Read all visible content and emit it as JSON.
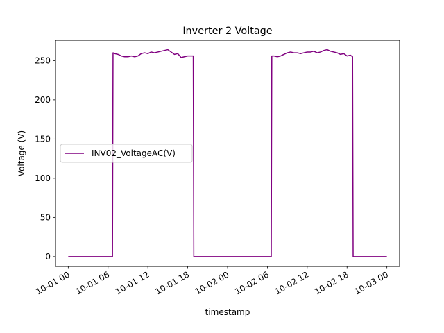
{
  "chart_data": {
    "type": "line",
    "title": "Inverter 2 Voltage",
    "xlabel": "timestamp",
    "ylabel": "Voltage (V)",
    "xlim": [
      "2023-09-30 22:05",
      "2023-10-03 01:55"
    ],
    "ylim": [
      -12.5,
      276
    ],
    "x_ticks": [
      "10-01 00",
      "10-01 06",
      "10-01 12",
      "10-01 18",
      "10-02 00",
      "10-02 06",
      "10-02 12",
      "10-02 18",
      "10-03 00"
    ],
    "y_ticks": [
      0,
      50,
      100,
      150,
      200,
      250
    ],
    "grid": false,
    "legend_position": "center-left",
    "series": [
      {
        "name": "INV02_VoltageAC(V)",
        "color": "#800080",
        "x": [
          "2023-10-01 00:00",
          "2023-10-01 06:40",
          "2023-10-01 06:45",
          "2023-10-01 07:00",
          "2023-10-01 07:30",
          "2023-10-01 08:00",
          "2023-10-01 08:30",
          "2023-10-01 09:00",
          "2023-10-01 09:30",
          "2023-10-01 10:00",
          "2023-10-01 10:30",
          "2023-10-01 11:00",
          "2023-10-01 11:30",
          "2023-10-01 12:00",
          "2023-10-01 12:30",
          "2023-10-01 13:00",
          "2023-10-01 13:30",
          "2023-10-01 14:00",
          "2023-10-01 14:30",
          "2023-10-01 15:00",
          "2023-10-01 15:30",
          "2023-10-01 16:00",
          "2023-10-01 16:30",
          "2023-10-01 17:00",
          "2023-10-01 17:30",
          "2023-10-01 18:00",
          "2023-10-01 18:30",
          "2023-10-01 18:50",
          "2023-10-01 18:55",
          "2023-10-02 06:35",
          "2023-10-02 06:40",
          "2023-10-02 07:00",
          "2023-10-02 07:30",
          "2023-10-02 08:00",
          "2023-10-02 08:30",
          "2023-10-02 09:00",
          "2023-10-02 09:30",
          "2023-10-02 10:00",
          "2023-10-02 10:30",
          "2023-10-02 11:00",
          "2023-10-02 11:30",
          "2023-10-02 12:00",
          "2023-10-02 12:30",
          "2023-10-02 13:00",
          "2023-10-02 13:30",
          "2023-10-02 14:00",
          "2023-10-02 14:30",
          "2023-10-02 15:00",
          "2023-10-02 15:30",
          "2023-10-02 16:00",
          "2023-10-02 16:30",
          "2023-10-02 17:00",
          "2023-10-02 17:30",
          "2023-10-02 18:00",
          "2023-10-02 18:30",
          "2023-10-02 18:50",
          "2023-10-02 18:55",
          "2023-10-03 00:00"
        ],
        "y": [
          0,
          0,
          260,
          259,
          258,
          256,
          255,
          255,
          256,
          255,
          256,
          259,
          260,
          259,
          261,
          260,
          261,
          262,
          263,
          264,
          261,
          258,
          259,
          254,
          255,
          256,
          256,
          256,
          0,
          0,
          256,
          256,
          255,
          256,
          258,
          260,
          261,
          260,
          260,
          259,
          260,
          261,
          261,
          262,
          260,
          261,
          263,
          264,
          262,
          261,
          260,
          258,
          259,
          256,
          257,
          255,
          0,
          0
        ]
      }
    ]
  }
}
